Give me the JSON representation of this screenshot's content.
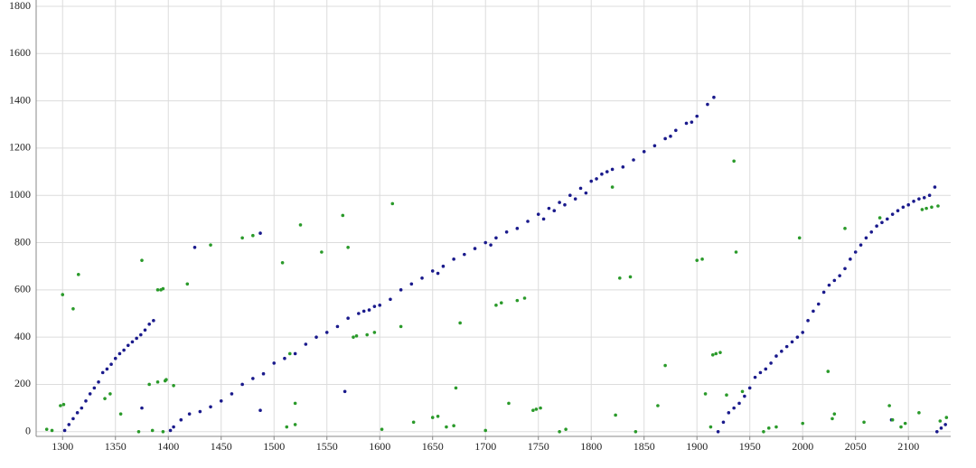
{
  "chart_data": {
    "type": "scatter",
    "xlim": [
      1275,
      2140
    ],
    "ylim": [
      -20,
      1800
    ],
    "xticks": [
      1300,
      1350,
      1400,
      1450,
      1500,
      1550,
      1600,
      1650,
      1700,
      1750,
      1800,
      1850,
      1900,
      1950,
      2000,
      2050,
      2100
    ],
    "yticks": [
      0,
      200,
      400,
      600,
      800,
      1000,
      1200,
      1400,
      1600,
      1800
    ],
    "grid": true,
    "series": [
      {
        "color": "#1a1a8c",
        "x": [
          1302,
          1306,
          1310,
          1314,
          1318,
          1322,
          1326,
          1330,
          1334,
          1338,
          1342,
          1346,
          1350,
          1354,
          1358,
          1362,
          1366,
          1370,
          1374,
          1378,
          1382,
          1386,
          1402,
          1405,
          1412,
          1420,
          1430,
          1440,
          1450,
          1460,
          1470,
          1480,
          1490,
          1500,
          1510,
          1520,
          1530,
          1540,
          1550,
          1560,
          1570,
          1580,
          1585,
          1590,
          1595,
          1600,
          1610,
          1620,
          1630,
          1640,
          1650,
          1655,
          1660,
          1670,
          1680,
          1690,
          1700,
          1705,
          1710,
          1720,
          1730,
          1740,
          1750,
          1755,
          1760,
          1765,
          1770,
          1775,
          1780,
          1785,
          1790,
          1795,
          1800,
          1805,
          1810,
          1815,
          1820,
          1830,
          1840,
          1850,
          1860,
          1870,
          1875,
          1880,
          1890,
          1895,
          1900,
          1910,
          1916,
          1920,
          1925,
          1930,
          1935,
          1940,
          1945,
          1950,
          1955,
          1960,
          1965,
          1970,
          1975,
          1980,
          1985,
          1990,
          1995,
          2000,
          2005,
          2010,
          2015,
          2020,
          2025,
          2030,
          2035,
          2040,
          2045,
          2050,
          2055,
          2060,
          2065,
          2070,
          2075,
          2080,
          2085,
          2090,
          2095,
          2100,
          2105,
          2110,
          2115,
          2120,
          2125,
          2127,
          2131,
          2135,
          1375,
          1425,
          1487,
          1487,
          1567,
          2084
        ],
        "values": [
          5,
          30,
          55,
          80,
          100,
          130,
          160,
          185,
          210,
          250,
          265,
          285,
          310,
          330,
          345,
          365,
          380,
          395,
          410,
          430,
          455,
          470,
          5,
          20,
          50,
          75,
          85,
          105,
          130,
          160,
          200,
          225,
          245,
          290,
          310,
          330,
          370,
          400,
          420,
          445,
          480,
          500,
          510,
          515,
          530,
          535,
          560,
          600,
          625,
          650,
          680,
          670,
          700,
          730,
          750,
          775,
          800,
          790,
          820,
          845,
          860,
          890,
          920,
          900,
          945,
          935,
          970,
          960,
          1000,
          985,
          1030,
          1010,
          1060,
          1070,
          1090,
          1100,
          1110,
          1120,
          1150,
          1185,
          1210,
          1240,
          1250,
          1275,
          1305,
          1310,
          1335,
          1385,
          1415,
          0,
          40,
          80,
          100,
          120,
          150,
          185,
          230,
          250,
          265,
          290,
          320,
          340,
          360,
          380,
          400,
          420,
          470,
          510,
          540,
          590,
          620,
          640,
          660,
          690,
          730,
          760,
          790,
          820,
          845,
          870,
          885,
          900,
          920,
          935,
          950,
          960,
          975,
          985,
          990,
          1000,
          1035,
          0,
          15,
          30,
          100,
          780,
          840,
          90,
          170,
          50
        ]
      },
      {
        "color": "#2a9a2a",
        "x": [
          1300,
          1298,
          1301,
          1310,
          1315,
          1290,
          1285,
          1340,
          1345,
          1355,
          1375,
          1372,
          1382,
          1385,
          1390,
          1393,
          1395,
          1390,
          1397,
          1398,
          1395,
          1405,
          1418,
          1440,
          1470,
          1480,
          1508,
          1512,
          1515,
          1520,
          1520,
          1525,
          1545,
          1565,
          1570,
          1575,
          1578,
          1588,
          1595,
          1602,
          1612,
          1620,
          1632,
          1650,
          1655,
          1663,
          1670,
          1672,
          1676,
          1700,
          1710,
          1715,
          1722,
          1730,
          1737,
          1745,
          1748,
          1752,
          1770,
          1776,
          1820,
          1823,
          1827,
          1837,
          1842,
          1863,
          1870,
          1900,
          1905,
          1908,
          1913,
          1915,
          1918,
          1922,
          1928,
          1935,
          1937,
          1943,
          1963,
          1968,
          1975,
          1997,
          2000,
          2024,
          2028,
          2030,
          2040,
          2058,
          2073,
          2082,
          2085,
          2093,
          2097,
          2110,
          2113,
          2117,
          2122,
          2128,
          2130,
          2136
        ],
        "values": [
          580,
          110,
          115,
          520,
          665,
          5,
          10,
          140,
          160,
          75,
          725,
          0,
          200,
          5,
          600,
          600,
          605,
          210,
          215,
          220,
          0,
          195,
          625,
          790,
          820,
          830,
          715,
          20,
          330,
          30,
          120,
          875,
          760,
          915,
          780,
          400,
          405,
          410,
          420,
          10,
          965,
          445,
          40,
          60,
          65,
          20,
          25,
          185,
          460,
          5,
          535,
          545,
          120,
          555,
          565,
          90,
          95,
          100,
          0,
          10,
          1035,
          70,
          650,
          655,
          0,
          110,
          280,
          725,
          730,
          160,
          20,
          325,
          330,
          335,
          155,
          1145,
          760,
          170,
          0,
          15,
          20,
          820,
          35,
          255,
          55,
          75,
          860,
          40,
          905,
          110,
          50,
          20,
          35,
          80,
          940,
          945,
          950,
          955,
          45,
          60
        ]
      }
    ]
  }
}
